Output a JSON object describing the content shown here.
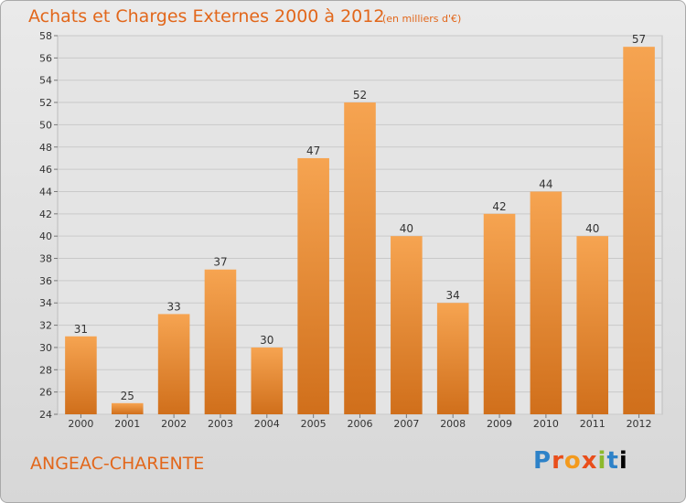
{
  "header": {
    "title": "Achats et Charges Externes 2000 à 2012",
    "unit": "(en milliers d'€)"
  },
  "footer": {
    "place": "ANGEAC-CHARENTE",
    "logo_letters": [
      "P",
      "r",
      "o",
      "x",
      "i",
      "t",
      "i"
    ]
  },
  "colors": {
    "bar_light": "#f6a451",
    "bar_dark": "#d06f1b",
    "accent": "#e2671b",
    "grid": "#c9c9c9"
  },
  "chart_data": {
    "type": "bar",
    "title": "Achats et Charges Externes 2000 à 2012",
    "subtitle": "(en milliers d'€)",
    "categories": [
      "2000",
      "2001",
      "2002",
      "2003",
      "2004",
      "2005",
      "2006",
      "2007",
      "2008",
      "2009",
      "2010",
      "2011",
      "2012"
    ],
    "values": [
      31,
      25,
      33,
      37,
      30,
      47,
      52,
      40,
      34,
      42,
      44,
      40,
      57
    ],
    "ylim": [
      24,
      58
    ],
    "yticks": [
      24,
      26,
      28,
      30,
      32,
      34,
      36,
      38,
      40,
      42,
      44,
      46,
      48,
      50,
      52,
      54,
      56,
      58
    ],
    "grid": true,
    "data_labels": true
  }
}
